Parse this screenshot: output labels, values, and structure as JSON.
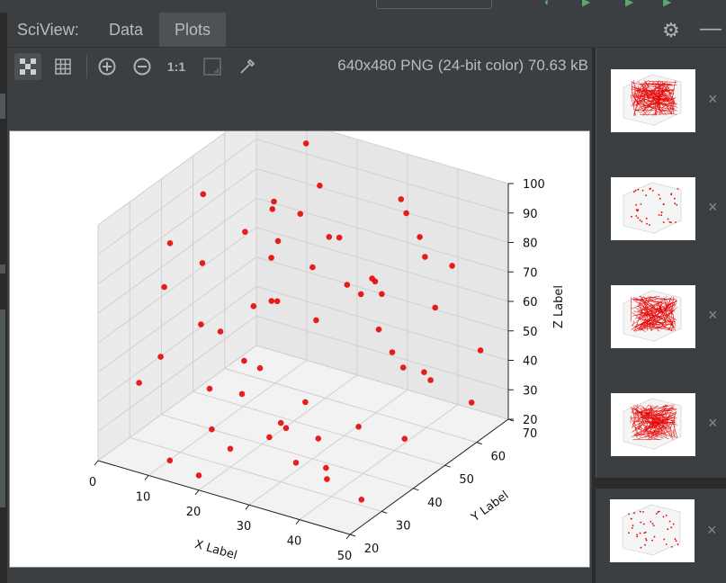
{
  "sciview": {
    "title": "SciView:",
    "tabs": [
      {
        "label": "Data",
        "active": false
      },
      {
        "label": "Plots",
        "active": true
      }
    ]
  },
  "toolbar": {
    "tools": [
      "checker-icon",
      "grid-icon",
      "zoom-in-icon",
      "zoom-out-icon",
      "actual-size-label",
      "fit-icon",
      "color-picker-icon"
    ],
    "actual_size_label": "1:1",
    "image_info": "640x480 PNG (24-bit color) 70.63 kB"
  },
  "thumbnails": [
    {
      "style": "dense-lines",
      "close": "×"
    },
    {
      "style": "sparse-points",
      "close": "×"
    },
    {
      "style": "dense-lines",
      "close": "×"
    },
    {
      "style": "dense-lines",
      "close": "×"
    },
    {
      "style": "sparse-points",
      "close": "×"
    }
  ],
  "colors": {
    "accent_tab": "#4e5254",
    "marker": "#e60000",
    "background": "#3c3f41"
  },
  "chart_data": {
    "type": "scatter",
    "title": "",
    "xlabel": "X Label",
    "ylabel": "Y Label",
    "zlabel": "Z Label",
    "xlim": [
      0,
      50
    ],
    "ylim": [
      20,
      70
    ],
    "zlim": [
      20,
      100
    ],
    "xticks": [
      "0",
      "10",
      "20",
      "30",
      "40",
      "50"
    ],
    "yticks": [
      "20",
      "30",
      "40",
      "50",
      "60",
      "70"
    ],
    "zticks": [
      "20",
      "30",
      "40",
      "50",
      "60",
      "70",
      "80",
      "90",
      "100"
    ],
    "grid": true,
    "marker_color": "red",
    "points": [
      [
        8,
        30,
        90
      ],
      [
        13,
        65,
        99
      ],
      [
        22,
        55,
        97
      ],
      [
        35,
        60,
        95
      ],
      [
        45,
        50,
        95
      ],
      [
        20,
        45,
        85
      ],
      [
        27,
        50,
        86
      ],
      [
        40,
        35,
        88
      ],
      [
        10,
        25,
        80
      ],
      [
        30,
        40,
        85
      ],
      [
        15,
        60,
        80
      ],
      [
        25,
        35,
        75
      ],
      [
        33,
        55,
        70
      ],
      [
        42,
        65,
        72
      ],
      [
        5,
        45,
        70
      ],
      [
        18,
        30,
        65
      ],
      [
        28,
        62,
        63
      ],
      [
        48,
        40,
        60
      ],
      [
        12,
        50,
        55
      ],
      [
        38,
        25,
        55
      ],
      [
        22,
        68,
        50
      ],
      [
        3,
        35,
        45
      ],
      [
        30,
        30,
        40
      ],
      [
        44,
        55,
        42
      ],
      [
        16,
        40,
        35
      ],
      [
        25,
        22,
        35
      ],
      [
        36,
        45,
        30
      ],
      [
        49,
        60,
        33
      ],
      [
        7,
        55,
        30
      ],
      [
        20,
        20,
        25
      ],
      [
        33,
        30,
        28
      ],
      [
        42,
        50,
        25
      ],
      [
        10,
        40,
        20
      ],
      [
        28,
        45,
        22
      ],
      [
        46,
        30,
        22
      ],
      [
        5,
        25,
        45
      ],
      [
        15,
        65,
        40
      ],
      [
        38,
        66,
        55
      ],
      [
        24,
        58,
        78
      ],
      [
        31,
        68,
        82
      ],
      [
        11,
        35,
        60
      ],
      [
        40,
        45,
        65
      ],
      [
        19,
        25,
        50
      ],
      [
        47,
        66,
        45
      ],
      [
        26,
        38,
        30
      ],
      [
        34,
        20,
        45
      ],
      [
        8,
        62,
        60
      ],
      [
        44,
        22,
        38
      ],
      [
        17,
        48,
        92
      ],
      [
        29,
        25,
        62
      ],
      [
        41,
        58,
        80
      ],
      [
        2,
        50,
        88
      ],
      [
        23,
        40,
        70
      ],
      [
        36,
        35,
        20
      ],
      [
        13,
        22,
        25
      ],
      [
        49,
        45,
        55
      ],
      [
        6,
        66,
        75
      ],
      [
        32,
        62,
        40
      ],
      [
        21,
        33,
        98
      ],
      [
        45,
        38,
        85
      ]
    ]
  }
}
